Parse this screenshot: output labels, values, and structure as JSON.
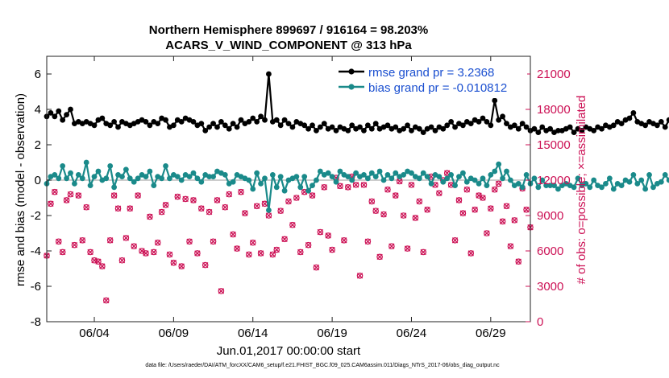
{
  "chart_data": {
    "type": "line",
    "title_line1": "Northern Hemisphere 899697 / 916164 = 98.203%",
    "title_line2": "ACARS_V_WIND_COMPONENT @ 313 hPa",
    "xlabel": "Jun.01,2017 00:00:00 start",
    "ylabel_left": "rmse and bias (model - observation)",
    "ylabel_right": "# of obs: o=possible; ×=assimilated",
    "footnote": "data file: /Users/raeder/DAI/ATM_forcXX/CAM6_setup/f.e21.FHIST_BGC.f09_025.CAM6assim.011/Diags_NTrS_2017-06/obs_diag_output.nc",
    "x_range_days": [
      0.0,
      30.5
    ],
    "xticks": [
      {
        "day": 3,
        "label": "06/04"
      },
      {
        "day": 8,
        "label": "06/09"
      },
      {
        "day": 13,
        "label": "06/14"
      },
      {
        "day": 18,
        "label": "06/19"
      },
      {
        "day": 23,
        "label": "06/24"
      },
      {
        "day": 28,
        "label": "06/29"
      }
    ],
    "ylim_left": [
      -8,
      7
    ],
    "yticks_left": [
      "6",
      "4",
      "2",
      "0",
      "-2",
      "-4",
      "-6",
      "-8"
    ],
    "ylim_right": [
      0,
      22500
    ],
    "yticks_right": [
      "21000",
      "18000",
      "15000",
      "12000",
      "9000",
      "6000",
      "3000",
      "0"
    ],
    "legend": {
      "rmse_label": "rmse grand pr = 3.2368",
      "bias_label": "bias grand pr = -0.010812"
    },
    "colors": {
      "rmse": "#000000",
      "bias": "#1a8a8a",
      "obs": "#cc1155",
      "zero_line": "#bbbbbb",
      "legend_text": "#1a4fd0",
      "right_axis": "#cc1155"
    },
    "step_days": 0.25,
    "series": [
      {
        "name": "rmse",
        "values": [
          3.6,
          3.8,
          3.6,
          3.9,
          3.4,
          3.7,
          4.0,
          3.2,
          3.3,
          3.2,
          3.3,
          3.2,
          3.1,
          3.4,
          3.5,
          3.2,
          3.1,
          3.3,
          3.0,
          3.3,
          3.2,
          3.1,
          3.2,
          3.3,
          3.4,
          3.3,
          3.1,
          3.3,
          3.2,
          3.5,
          3.4,
          3.0,
          3.1,
          3.4,
          3.3,
          3.5,
          3.4,
          3.3,
          3.1,
          3.2,
          2.8,
          3.0,
          3.2,
          3.0,
          3.3,
          3.1,
          2.9,
          3.2,
          3.0,
          3.4,
          3.2,
          3.3,
          3.5,
          3.3,
          3.6,
          3.4,
          6.0,
          3.3,
          3.4,
          3.1,
          3.4,
          3.2,
          3.0,
          3.3,
          3.2,
          3.1,
          2.9,
          3.1,
          2.8,
          3.0,
          3.2,
          2.9,
          3.0,
          2.8,
          3.0,
          2.9,
          2.8,
          3.1,
          2.9,
          3.0,
          2.8,
          3.1,
          2.9,
          3.2,
          2.9,
          3.0,
          3.1,
          2.9,
          3.0,
          2.8,
          2.9,
          3.1,
          2.8,
          3.0,
          2.9,
          2.7,
          2.9,
          3.0,
          2.8,
          3.0,
          2.9,
          3.1,
          3.3,
          3.0,
          3.2,
          3.1,
          3.3,
          3.2,
          3.4,
          3.3,
          3.5,
          3.3,
          3.1,
          4.5,
          3.4,
          3.6,
          3.2,
          3.0,
          3.1,
          2.9,
          3.2,
          3.0,
          2.8,
          2.9,
          2.7,
          3.0,
          2.8,
          2.9,
          2.7,
          2.8,
          2.8,
          2.9,
          3.0,
          2.7,
          2.9,
          2.8,
          3.0,
          2.9,
          2.8,
          3.0,
          2.9,
          3.1,
          3.0,
          3.1,
          3.3,
          3.2,
          3.4,
          3.5,
          3.8,
          3.3,
          3.2,
          3.1,
          3.3,
          3.2,
          3.1,
          3.3,
          3.0,
          3.4,
          3.2,
          3.2
        ]
      },
      {
        "name": "bias",
        "values": [
          -0.2,
          0.2,
          0.3,
          0.1,
          0.8,
          0.1,
          0.4,
          -0.2,
          0.3,
          0.1,
          1.0,
          -0.3,
          0.2,
          0.5,
          0.0,
          0.1,
          0.8,
          -0.4,
          0.3,
          0.2,
          0.6,
          0.1,
          -0.1,
          0.1,
          0.3,
          0.2,
          0.5,
          -0.3,
          0.2,
          0.1,
          0.8,
          0.1,
          0.3,
          0.2,
          0.0,
          0.3,
          0.2,
          0.4,
          0.1,
          -0.1,
          0.3,
          0.2,
          0.2,
          0.5,
          0.4,
          0.3,
          -0.2,
          -0.1,
          0.3,
          0.2,
          0.1,
          0.0,
          -0.5,
          0.4,
          -0.2,
          0.1,
          -1.7,
          0.3,
          -0.4,
          0.2,
          -0.6,
          0.0,
          0.1,
          0.2,
          -0.4,
          0.2,
          -0.6,
          -0.3,
          0.0,
          0.5,
          0.3,
          0.4,
          0.2,
          -0.1,
          0.5,
          0.3,
          0.2,
          0.0,
          0.4,
          0.2,
          0.3,
          0.1,
          0.4,
          0.2,
          0.5,
          0.0,
          0.3,
          0.1,
          0.4,
          0.2,
          0.3,
          0.5,
          0.4,
          0.2,
          0.1,
          0.4,
          0.2,
          -0.2,
          0.3,
          0.2,
          -0.1,
          0.1,
          0.3,
          -0.3,
          0.2,
          0.4,
          -0.1,
          0.1,
          0.0,
          -0.2,
          0.1,
          -0.3,
          0.3,
          0.5,
          0.9,
          0.1,
          0.5,
          0.0,
          -0.3,
          -0.2,
          -0.4,
          0.3,
          -0.2,
          0.1,
          -0.4,
          0.0,
          -0.3,
          -0.3,
          -0.3,
          -0.5,
          -0.3,
          -0.2,
          -0.3,
          -0.4,
          0.1,
          -0.3,
          -0.2,
          -0.4,
          0.0,
          -0.3,
          -0.4,
          -0.2,
          0.1,
          -0.5,
          -0.2,
          -0.3,
          0.0,
          -0.1,
          0.3,
          -0.2,
          0.0,
          -0.5,
          0.3,
          -0.4,
          -0.2,
          -0.1,
          0.3,
          0.0,
          -0.1,
          -0.3,
          -0.5
        ]
      },
      {
        "name": "obs_count",
        "values": [
          5600,
          10000,
          11000,
          6800,
          5900,
          10300,
          10800,
          6500,
          10700,
          6900,
          9700,
          5900,
          5200,
          5100,
          4700,
          1800,
          6900,
          10700,
          9600,
          5200,
          7100,
          9600,
          6400,
          10700,
          6000,
          5800,
          8900,
          5900,
          6700,
          9300,
          9900,
          5700,
          5000,
          10600,
          4700,
          10400,
          6800,
          10300,
          5800,
          9600,
          4800,
          9300,
          6800,
          10300,
          2600,
          9700,
          10800,
          7400,
          6200,
          11000,
          9200,
          5700,
          6700,
          9800,
          5800,
          10000,
          9000,
          5700,
          6100,
          9400,
          7000,
          10200,
          8200,
          10500,
          5900,
          11000,
          6500,
          10700,
          4600,
          7600,
          11400,
          7300,
          6100,
          12200,
          11500,
          6900,
          11400,
          12300,
          11600,
          3900,
          11600,
          6800,
          10200,
          9400,
          5500,
          9100,
          11200,
          6400,
          10700,
          11900,
          9000,
          6200,
          11600,
          8800,
          10200,
          5900,
          9500,
          12300,
          11600,
          10900,
          12000,
          12600,
          11600,
          6900,
          10300,
          9200,
          11200,
          5800,
          9500,
          10700,
          10500,
          7500,
          9600,
          11200,
          11700,
          8500,
          9800,
          6400,
          8600,
          5100,
          11300,
          9500,
          8000,
          9000,
          3800,
          10300,
          11900,
          6700,
          9000,
          8200,
          4400,
          9300,
          6700,
          9200,
          12500,
          11500,
          5100,
          10000,
          9600,
          4300,
          11200,
          10300,
          7500,
          10300,
          10700,
          14900,
          12300,
          12100,
          10500,
          6000,
          10000,
          10900,
          6900,
          10700,
          12300,
          5400,
          10200,
          8800,
          12300,
          9800
        ]
      }
    ]
  }
}
